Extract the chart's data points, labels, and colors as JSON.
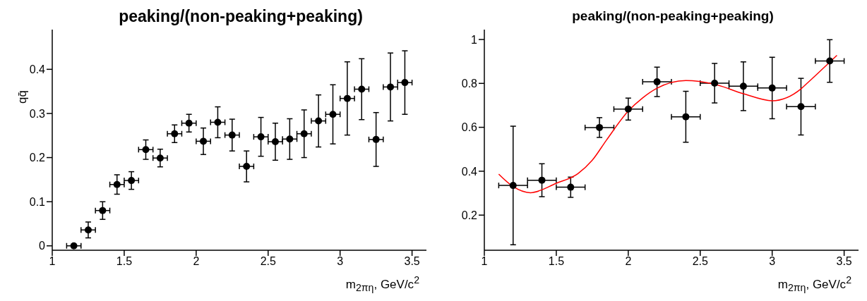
{
  "chart_data": [
    {
      "type": "scatter",
      "title": "peaking/(non-peaking+peaking)",
      "xlabel": "m$_{2πη}$, GeV/c$^{2}$",
      "ylabel": "qq̄",
      "xlim": [
        1,
        3.6
      ],
      "xticks": [
        1,
        1.5,
        2,
        2.5,
        3,
        3.5
      ],
      "ylim": [
        -0.01,
        0.49
      ],
      "yticks": [
        0,
        0.1,
        0.2,
        0.3,
        0.4
      ],
      "grid": false,
      "series": [
        {
          "marker": "circle",
          "color": "#000000",
          "x": [
            1.15,
            1.25,
            1.35,
            1.45,
            1.55,
            1.65,
            1.75,
            1.85,
            1.95,
            2.05,
            2.15,
            2.25,
            2.35,
            2.45,
            2.55,
            2.65,
            2.75,
            2.85,
            2.95,
            3.05,
            3.15,
            3.25,
            3.35,
            3.45
          ],
          "values": [
            0,
            0.036,
            0.08,
            0.139,
            0.148,
            0.218,
            0.199,
            0.254,
            0.278,
            0.237,
            0.28,
            0.251,
            0.18,
            0.247,
            0.236,
            0.242,
            0.254,
            0.283,
            0.298,
            0.334,
            0.355,
            0.241,
            0.36,
            0.37
          ],
          "errors": [
            0.002,
            0.018,
            0.02,
            0.022,
            0.02,
            0.022,
            0.02,
            0.02,
            0.02,
            0.03,
            0.035,
            0.036,
            0.035,
            0.044,
            0.042,
            0.046,
            0.054,
            0.059,
            0.067,
            0.083,
            0.069,
            0.061,
            0.077,
            0.072
          ],
          "xerrors": [
            0.05,
            0.05,
            0.05,
            0.05,
            0.05,
            0.05,
            0.05,
            0.05,
            0.05,
            0.05,
            0.05,
            0.05,
            0.05,
            0.05,
            0.05,
            0.05,
            0.05,
            0.05,
            0.05,
            0.05,
            0.05,
            0.05,
            0.05,
            0.05
          ]
        }
      ]
    },
    {
      "type": "scatter",
      "title": "peaking/(non-peaking+peaking)",
      "xlabel": "m$_{2πη}$, GeV/c$^{2}$",
      "xlim": [
        1,
        3.6
      ],
      "xticks": [
        1,
        1.5,
        2,
        2.5,
        3,
        3.5
      ],
      "ylim": [
        0.04,
        1.045
      ],
      "yticks": [
        0.2,
        0.4,
        0.6,
        0.8,
        1
      ],
      "grid": false,
      "series": [
        {
          "marker": "circle",
          "color": "#000000",
          "x": [
            1.2,
            1.4,
            1.6,
            1.8,
            2.0,
            2.2,
            2.4,
            2.6,
            2.8,
            3.0,
            3.2,
            3.4
          ],
          "values": [
            0.335,
            0.359,
            0.327,
            0.599,
            0.683,
            0.807,
            0.648,
            0.801,
            0.787,
            0.779,
            0.694,
            0.902
          ],
          "errors": [
            0.27,
            0.075,
            0.046,
            0.045,
            0.05,
            0.067,
            0.116,
            0.09,
            0.111,
            0.14,
            0.129,
            0.097
          ],
          "xerrors": [
            0.1,
            0.1,
            0.1,
            0.1,
            0.1,
            0.1,
            0.1,
            0.1,
            0.1,
            0.1,
            0.1,
            0.1
          ]
        },
        {
          "type": "line",
          "color": "#ff0000",
          "x": [
            1.1,
            1.2,
            1.32,
            1.5,
            1.65,
            1.75,
            1.85,
            2.0,
            2.1,
            2.2,
            2.4,
            2.6,
            2.8,
            3.0,
            3.2,
            3.25,
            3.45
          ],
          "values": [
            0.387,
            0.33,
            0.302,
            0.345,
            0.389,
            0.45,
            0.543,
            0.674,
            0.734,
            0.778,
            0.813,
            0.796,
            0.753,
            0.721,
            0.775,
            0.805,
            0.928
          ]
        }
      ]
    }
  ]
}
